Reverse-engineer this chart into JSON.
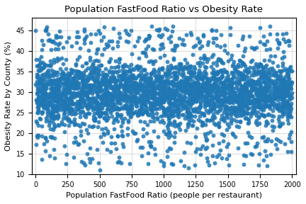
{
  "title": "Population FastFood Ratio vs Obesity Rate",
  "xlabel": "Population FastFood Ratio (people per restaurant)",
  "ylabel": "Obesity Rate by County (%)",
  "xlim": [
    -30,
    2030
  ],
  "ylim": [
    10,
    48
  ],
  "xticks": [
    0,
    250,
    500,
    750,
    1000,
    1250,
    1500,
    1750,
    2000
  ],
  "yticks": [
    10,
    15,
    20,
    25,
    30,
    35,
    40,
    45
  ],
  "dot_color": "#1f77b4",
  "dot_size": 18,
  "alpha": 0.85,
  "grid": true,
  "seed": 42,
  "n_uniform": 2800,
  "n_sparse": 400
}
